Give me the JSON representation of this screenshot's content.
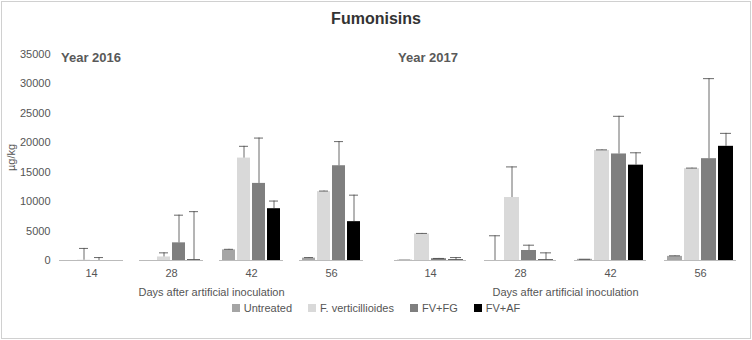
{
  "chart_data": {
    "type": "bar",
    "title": "Fumonisins",
    "ylabel": "µg/kg",
    "xlabel": "Days after artificial inoculation",
    "categories": [
      14,
      28,
      42,
      56
    ],
    "ylim": [
      0,
      35000
    ],
    "yticks": [
      0,
      5000,
      10000,
      15000,
      20000,
      25000,
      30000,
      35000
    ],
    "legend": "bottom",
    "panels": [
      {
        "title": "Year 2016",
        "series": [
          {
            "name": "Untreated",
            "color": "#a5a5a5",
            "values": [
              0,
              0,
              1800,
              400
            ],
            "error": [
              0,
              0,
              100,
              100
            ]
          },
          {
            "name": "F. verticillioides",
            "color": "#d9d9d9",
            "values": [
              50,
              600,
              17400,
              11700
            ],
            "error": [
              2000,
              700,
              2000,
              100
            ]
          },
          {
            "name": "FV+FG",
            "color": "#7f7f7f",
            "values": [
              0,
              3000,
              13100,
              16100
            ],
            "error": [
              500,
              4700,
              7700,
              4100
            ]
          },
          {
            "name": "FV+AF",
            "color": "#000000",
            "values": [
              0,
              100,
              8800,
              6600
            ],
            "error": [
              0,
              8200,
              1300,
              4500
            ]
          }
        ]
      },
      {
        "title": "Year 2017",
        "series": [
          {
            "name": "Untreated",
            "color": "#a5a5a5",
            "values": [
              50,
              0,
              200,
              700
            ],
            "error": [
              0,
              4200,
              0,
              100
            ]
          },
          {
            "name": "F. verticillioides",
            "color": "#d9d9d9",
            "values": [
              4500,
              10700,
              18700,
              15600
            ],
            "error": [
              100,
              5200,
              100,
              100
            ]
          },
          {
            "name": "FV+FG",
            "color": "#7f7f7f",
            "values": [
              300,
              1700,
              18100,
              17300
            ],
            "error": [
              50,
              900,
              6400,
              13600
            ]
          },
          {
            "name": "FV+AF",
            "color": "#000000",
            "values": [
              100,
              100,
              16200,
              19400
            ],
            "error": [
              400,
              1200,
              2100,
              2200
            ]
          }
        ]
      }
    ]
  }
}
